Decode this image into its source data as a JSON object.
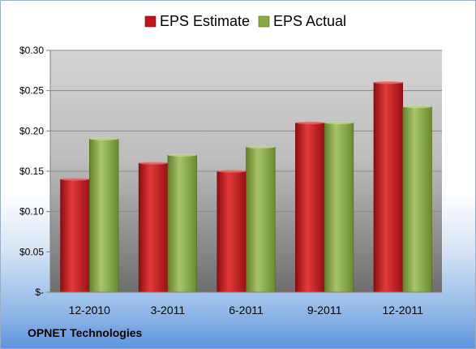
{
  "company": "OPNET Technologies",
  "colors": {
    "estimate": "#c0151b",
    "actual": "#8aa843"
  },
  "chart_data": {
    "type": "bar",
    "title": "",
    "xlabel": "",
    "ylabel": "",
    "categories": [
      "12-2010",
      "3-2011",
      "6-2011",
      "9-2011",
      "12-2011"
    ],
    "series": [
      {
        "name": "EPS Estimate",
        "values": [
          0.14,
          0.16,
          0.15,
          0.21,
          0.26
        ]
      },
      {
        "name": "EPS Actual",
        "values": [
          0.19,
          0.17,
          0.18,
          0.21,
          0.23
        ]
      }
    ],
    "ylim": [
      0,
      0.3
    ],
    "yticks": [
      0,
      0.05,
      0.1,
      0.15,
      0.2,
      0.25,
      0.3
    ],
    "ytick_labels": [
      "$-",
      "$0.05",
      "$0.10",
      "$0.15",
      "$0.20",
      "$0.25",
      "$0.30"
    ],
    "grid": true,
    "legend": "top-center"
  }
}
